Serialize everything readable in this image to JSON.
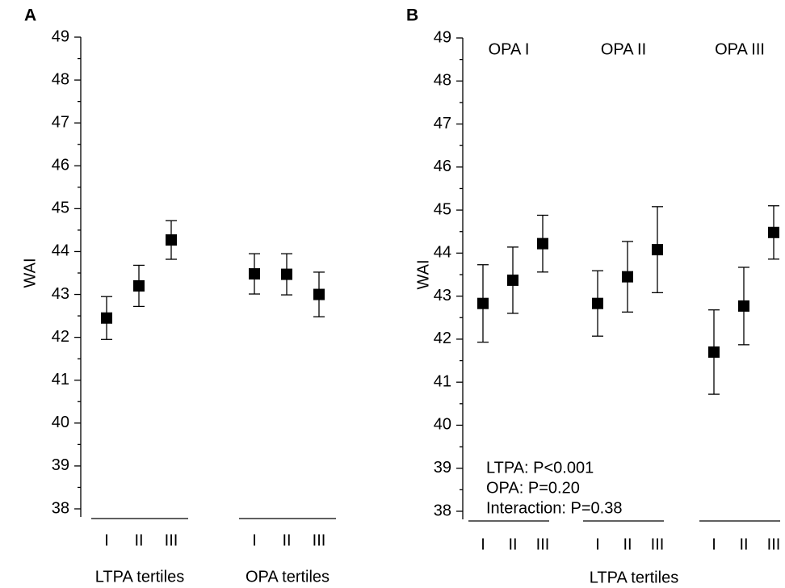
{
  "chart_data": [
    {
      "type": "errorbar",
      "panel_label": "A",
      "y_label": "WAI",
      "ylim": [
        38,
        49
      ],
      "yticks": [
        38,
        39,
        40,
        41,
        42,
        43,
        44,
        45,
        46,
        47,
        48,
        49
      ],
      "minor_ticks": true,
      "color": "#000000",
      "groups": [
        {
          "name": "LTPA tertiles",
          "categories": [
            "I",
            "II",
            "III"
          ],
          "values": [
            42.45,
            43.2,
            44.27
          ],
          "errors": [
            0.5,
            0.48,
            0.45
          ]
        },
        {
          "name": "OPA tertiles",
          "categories": [
            "I",
            "II",
            "III"
          ],
          "values": [
            43.48,
            43.47,
            43.0
          ],
          "errors": [
            0.47,
            0.48,
            0.52
          ]
        }
      ]
    },
    {
      "type": "errorbar",
      "panel_label": "B",
      "y_label": "WAI",
      "x_label": "LTPA tertiles",
      "ylim": [
        38,
        49
      ],
      "yticks": [
        38,
        39,
        40,
        41,
        42,
        43,
        44,
        45,
        46,
        47,
        48,
        49
      ],
      "minor_ticks": true,
      "color": "#000000",
      "groups": [
        {
          "name": "OPA I",
          "categories": [
            "I",
            "II",
            "III"
          ],
          "values": [
            42.83,
            43.37,
            44.22
          ],
          "errors": [
            0.9,
            0.77,
            0.66
          ]
        },
        {
          "name": "OPA II",
          "categories": [
            "I",
            "II",
            "III"
          ],
          "values": [
            42.83,
            43.45,
            44.08
          ],
          "errors": [
            0.76,
            0.82,
            1.0
          ]
        },
        {
          "name": "OPA III",
          "categories": [
            "I",
            "II",
            "III"
          ],
          "values": [
            41.7,
            42.77,
            44.48
          ],
          "errors": [
            0.98,
            0.9,
            0.62
          ]
        }
      ],
      "annotations": [
        "LTPA: P<0.001",
        "OPA: P=0.20",
        "Interaction: P=0.38"
      ]
    }
  ]
}
